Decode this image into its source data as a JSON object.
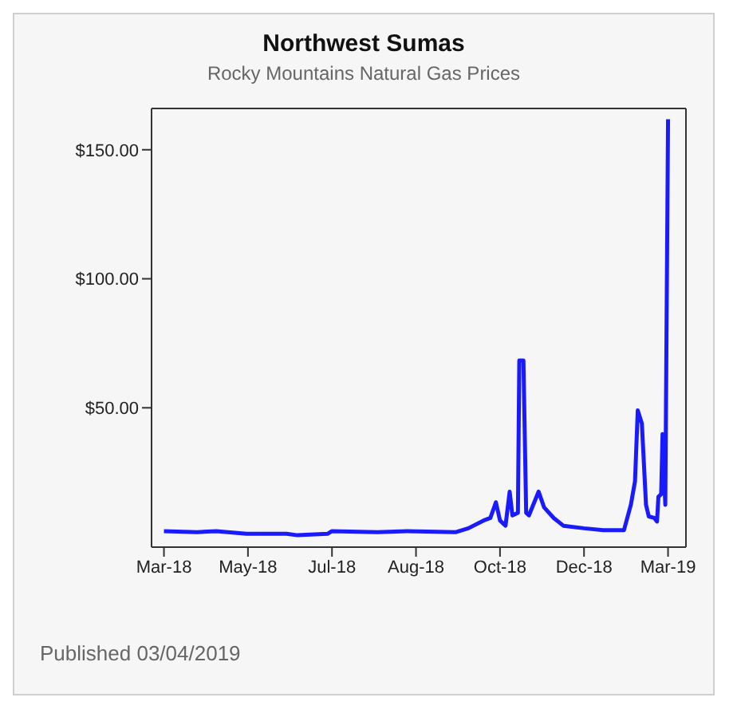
{
  "chart_data": {
    "type": "line",
    "title": "Northwest Sumas",
    "subtitle": "Rocky Mountains Natural Gas Prices",
    "annotations": [
      "Published 03/04/2019"
    ],
    "x": [
      "2018-03-01",
      "2018-03-25",
      "2018-04-08",
      "2018-04-30",
      "2018-05-29",
      "2018-06-06",
      "2018-06-28",
      "2018-07-01",
      "2018-08-03",
      "2018-08-25",
      "2018-09-29",
      "2018-10-08",
      "2018-10-19",
      "2018-10-24",
      "2018-10-28",
      "2018-10-31",
      "2018-11-04",
      "2018-11-07",
      "2018-11-09",
      "2018-11-13",
      "2018-11-14",
      "2018-11-17",
      "2018-11-19",
      "2018-11-21",
      "2018-11-28",
      "2018-12-02",
      "2018-12-09",
      "2018-12-16",
      "2018-12-31",
      "2019-01-14",
      "2019-01-29",
      "2019-02-03",
      "2019-02-06",
      "2019-02-08",
      "2019-02-11",
      "2019-02-14",
      "2019-02-16",
      "2019-02-20",
      "2019-02-22",
      "2019-02-23",
      "2019-02-25",
      "2019-02-26",
      "2019-02-28",
      "2019-03-02"
    ],
    "series": [
      {
        "color": "#1a1aff",
        "values": [
          2.2,
          1.8,
          2.2,
          1.2,
          1.2,
          0.6,
          1.2,
          2.2,
          1.8,
          2.2,
          1.8,
          3.3,
          6.3,
          7.3,
          13.4,
          6.3,
          4.3,
          17.5,
          8.3,
          9.3,
          68.3,
          68.3,
          9.3,
          8.3,
          17.5,
          11.4,
          7.3,
          4.3,
          3.3,
          2.6,
          2.6,
          12.4,
          21.5,
          49,
          43.9,
          12.4,
          7.9,
          7.3,
          5.9,
          15.5,
          16.5,
          39.8,
          12.4,
          161.8
        ]
      }
    ],
    "xlim": [
      "2018-02-20",
      "2019-03-15"
    ],
    "xticks": [
      {
        "value": "2018-03-01",
        "label": "Mar-18"
      },
      {
        "value": "2018-05-01",
        "label": "May-18"
      },
      {
        "value": "2018-07-01",
        "label": "Jul-18"
      },
      {
        "value": "2018-08-31",
        "label": "Aug-18"
      },
      {
        "value": "2018-10-31",
        "label": "Oct-18"
      },
      {
        "value": "2018-12-31",
        "label": "Dec-18"
      },
      {
        "value": "2019-03-02",
        "label": "Mar-19"
      }
    ],
    "ylim": [
      -4,
      166
    ],
    "yticks": [
      {
        "value": 50,
        "label": "$50.00"
      },
      {
        "value": 100,
        "label": "$100.00"
      },
      {
        "value": 150,
        "label": "$150.00"
      }
    ],
    "grid": false,
    "legend": false,
    "marker": "none",
    "line_style": "solid"
  }
}
